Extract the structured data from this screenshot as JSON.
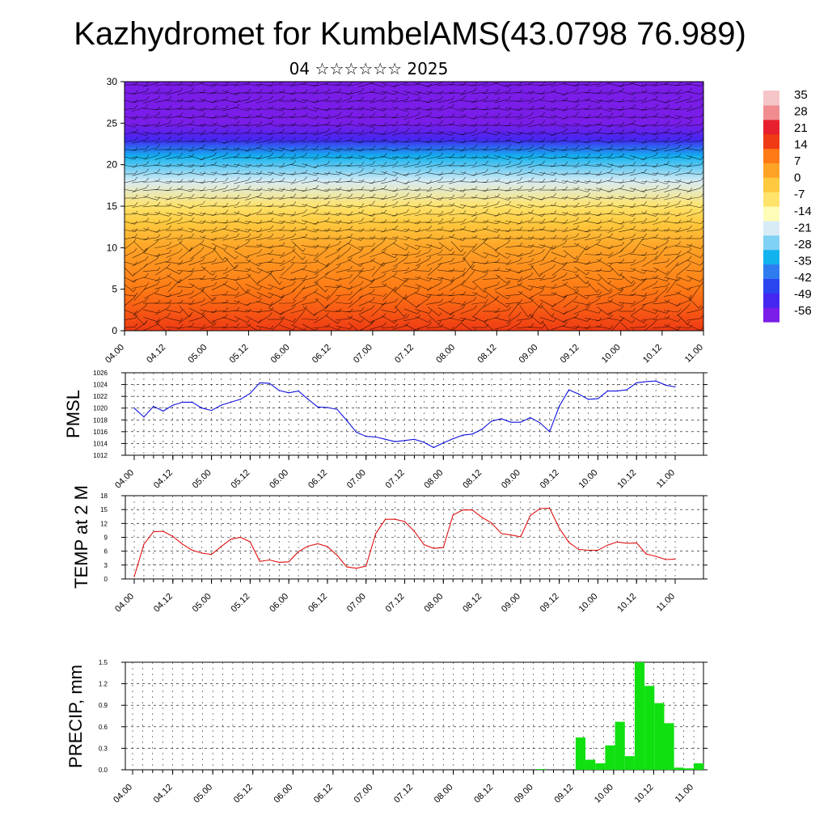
{
  "title": "Kazhydromet for KumbelAMS(43.0798 76.989)",
  "subtitle": "04 ☆☆☆☆☆☆ 2025",
  "time_labels": [
    "04.00",
    "04.12",
    "05.00",
    "05.12",
    "06.00",
    "06.12",
    "07.00",
    "07.12",
    "08.00",
    "08.12",
    "09.00",
    "09.12",
    "10.00",
    "10.12",
    "11.00"
  ],
  "chart_data": [
    {
      "type": "heatmap",
      "description_of_fill": "temperature cross-section with wind barbs",
      "x": "time_labels",
      "ylim": [
        0,
        30
      ],
      "yticks": [
        0,
        5,
        10,
        15,
        20,
        25,
        30
      ],
      "colorbar": {
        "ticks": [
          35,
          28,
          21,
          14,
          7,
          0,
          -7,
          -14,
          -21,
          -28,
          -35,
          -42,
          -49,
          -56
        ],
        "colors_low_to_high": [
          "#7a1de8",
          "#4427f0",
          "#2a45f0",
          "#2f7cf0",
          "#12b2ef",
          "#7fd2f3",
          "#d8ecf6",
          "#fffcb8",
          "#ffe36a",
          "#ffc93e",
          "#ffa326",
          "#ff7a15",
          "#ef3a14",
          "#e8202e",
          "#f08c90",
          "#f5c5c7"
        ]
      },
      "temp_profile_levels": [
        0,
        5,
        10,
        13,
        15,
        18,
        21,
        23,
        25,
        27,
        30
      ],
      "temp_profile_values": [
        14,
        10,
        3,
        -4,
        -10,
        -22,
        -35,
        -48,
        -56,
        -60,
        -62
      ]
    },
    {
      "type": "line",
      "ylabel": "PMSL",
      "ylim": [
        1012,
        1026
      ],
      "yticks": [
        1012,
        1014,
        1016,
        1018,
        1020,
        1022,
        1024,
        1026
      ],
      "color": "#1010e0",
      "values": [
        1020,
        1018.5,
        1020.3,
        1019.5,
        1020.5,
        1021,
        1021,
        1020,
        1019.6,
        1020.5,
        1021,
        1021.5,
        1022.5,
        1024.3,
        1024.2,
        1023,
        1022.6,
        1022.9,
        1021.5,
        1020.2,
        1020.1,
        1019.8,
        1017.9,
        1015.9,
        1015.2,
        1015.1,
        1014.7,
        1014.3,
        1014.5,
        1014.7,
        1014.2,
        1013.3,
        1014.1,
        1014.8,
        1015.4,
        1015.6,
        1016.4,
        1017.8,
        1018.2,
        1017.6,
        1017.6,
        1018.4,
        1017.5,
        1016,
        1020.3,
        1023.1,
        1022.4,
        1021.5,
        1021.6,
        1022.9,
        1022.9,
        1023.1,
        1024.3,
        1024.5,
        1024.6,
        1023.9,
        1023.6
      ]
    },
    {
      "type": "line",
      "ylabel": "TEMP at 2 M",
      "ylim": [
        0,
        18
      ],
      "yticks": [
        0,
        3,
        6,
        9,
        12,
        15,
        18
      ],
      "color": "#e01010",
      "values": [
        0.5,
        7.5,
        10.2,
        10.3,
        9.2,
        7.5,
        6.2,
        5.6,
        5.3,
        7,
        8.6,
        9,
        8,
        3.8,
        4.1,
        3.6,
        3.7,
        5.9,
        7.1,
        7.6,
        7,
        5.1,
        2.6,
        2.3,
        2.8,
        9.8,
        12.9,
        12.9,
        12.4,
        10.3,
        7.4,
        6.6,
        6.8,
        13.8,
        14.9,
        14.9,
        13.3,
        12.1,
        9.8,
        9.5,
        9.1,
        13.7,
        15.2,
        15.3,
        11,
        7.9,
        6.4,
        6.2,
        6.2,
        7.3,
        8,
        7.7,
        7.8,
        5.4,
        4.9,
        4.2,
        4.3
      ]
    },
    {
      "type": "bar",
      "ylabel": "PRECIP, mm",
      "ylim": [
        0,
        1.5
      ],
      "yticks": [
        "0.0",
        "0.3",
        "0.6",
        "0.9",
        "1.2",
        "1.5"
      ],
      "color": "#10e010",
      "values": [
        0,
        0,
        0,
        0,
        0,
        0,
        0,
        0,
        0,
        0,
        0,
        0,
        0,
        0,
        0,
        0,
        0,
        0,
        0,
        0,
        0,
        0,
        0,
        0,
        0,
        0,
        0,
        0,
        0,
        0,
        0,
        0,
        0,
        0,
        0,
        0,
        0,
        0,
        0,
        0,
        0,
        0.01,
        0,
        0,
        0,
        0.45,
        0.14,
        0.09,
        0.34,
        0.67,
        0.19,
        1.5,
        1.17,
        0.93,
        0.65,
        0.03,
        0.02,
        0.09
      ]
    }
  ]
}
